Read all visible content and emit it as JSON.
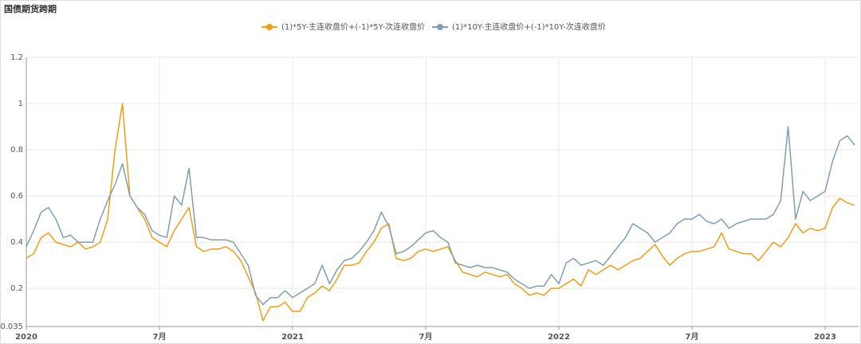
{
  "chart_data": {
    "type": "line",
    "title": "国债期货跨期",
    "categories": [
      "2020",
      null,
      null,
      null,
      null,
      null,
      null,
      null,
      null,
      null,
      null,
      null,
      null,
      null,
      null,
      null,
      null,
      null,
      "7月",
      null,
      null,
      null,
      null,
      null,
      null,
      null,
      null,
      null,
      null,
      null,
      null,
      null,
      null,
      null,
      null,
      null,
      "2021",
      null,
      null,
      null,
      null,
      null,
      null,
      null,
      null,
      null,
      null,
      null,
      null,
      null,
      null,
      null,
      null,
      null,
      "7月",
      null,
      null,
      null,
      null,
      null,
      null,
      null,
      null,
      null,
      null,
      null,
      null,
      null,
      null,
      null,
      null,
      null,
      "2022",
      null,
      null,
      null,
      null,
      null,
      null,
      null,
      null,
      null,
      null,
      null,
      null,
      null,
      null,
      null,
      null,
      null,
      "7月",
      null,
      null,
      null,
      null,
      null,
      null,
      null,
      null,
      null,
      null,
      null,
      null,
      null,
      null,
      null,
      null,
      null,
      "2023",
      null,
      null,
      null,
      null
    ],
    "series": [
      {
        "name": "(1)*5Y-主连收盘价+(-1)*5Y-次连收盘价",
        "color": "#f39c12",
        "values": [
          0.33,
          0.35,
          0.42,
          0.44,
          0.4,
          0.39,
          0.38,
          0.4,
          0.37,
          0.38,
          0.4,
          0.5,
          0.8,
          1.0,
          0.6,
          0.55,
          0.5,
          0.42,
          0.4,
          0.38,
          0.45,
          0.5,
          0.55,
          0.38,
          0.36,
          0.37,
          0.37,
          0.38,
          0.36,
          0.32,
          0.25,
          0.18,
          0.06,
          0.12,
          0.12,
          0.14,
          0.1,
          0.1,
          0.16,
          0.18,
          0.21,
          0.19,
          0.24,
          0.3,
          0.3,
          0.31,
          0.36,
          0.4,
          0.46,
          0.48,
          0.33,
          0.32,
          0.33,
          0.36,
          0.37,
          0.36,
          0.37,
          0.38,
          0.32,
          0.27,
          0.26,
          0.25,
          0.27,
          0.26,
          0.25,
          0.26,
          0.22,
          0.2,
          0.17,
          0.18,
          0.17,
          0.2,
          0.2,
          0.22,
          0.24,
          0.21,
          0.28,
          0.26,
          0.28,
          0.3,
          0.28,
          0.3,
          0.32,
          0.33,
          0.36,
          0.39,
          0.34,
          0.3,
          0.33,
          0.35,
          0.36,
          0.36,
          0.37,
          0.38,
          0.44,
          0.37,
          0.36,
          0.35,
          0.35,
          0.32,
          0.36,
          0.4,
          0.38,
          0.42,
          0.48,
          0.44,
          0.46,
          0.45,
          0.46,
          0.55,
          0.59,
          0.57,
          0.56
        ]
      },
      {
        "name": "(1)*10Y-主连收盘价+(-1)*10Y-次连收盘价",
        "color": "#7f9fb0",
        "values": [
          0.38,
          0.45,
          0.53,
          0.55,
          0.5,
          0.42,
          0.43,
          0.4,
          0.4,
          0.4,
          0.5,
          0.58,
          0.65,
          0.74,
          0.6,
          0.55,
          0.52,
          0.45,
          0.43,
          0.42,
          0.6,
          0.56,
          0.72,
          0.42,
          0.42,
          0.41,
          0.41,
          0.41,
          0.4,
          0.35,
          0.3,
          0.17,
          0.13,
          0.16,
          0.16,
          0.19,
          0.16,
          0.18,
          0.2,
          0.22,
          0.3,
          0.22,
          0.28,
          0.32,
          0.33,
          0.36,
          0.4,
          0.45,
          0.53,
          0.47,
          0.35,
          0.36,
          0.38,
          0.41,
          0.44,
          0.45,
          0.42,
          0.4,
          0.31,
          0.3,
          0.29,
          0.3,
          0.29,
          0.29,
          0.28,
          0.27,
          0.24,
          0.22,
          0.2,
          0.21,
          0.21,
          0.26,
          0.22,
          0.31,
          0.33,
          0.3,
          0.31,
          0.32,
          0.3,
          0.34,
          0.38,
          0.42,
          0.48,
          0.46,
          0.44,
          0.4,
          0.42,
          0.44,
          0.48,
          0.5,
          0.5,
          0.52,
          0.49,
          0.48,
          0.5,
          0.46,
          0.48,
          0.49,
          0.5,
          0.5,
          0.5,
          0.52,
          0.58,
          0.9,
          0.5,
          0.62,
          0.58,
          0.6,
          0.62,
          0.75,
          0.84,
          0.86,
          0.82
        ]
      }
    ],
    "ylim": [
      0.035,
      1.2
    ],
    "yticks": [
      0.035,
      0.2,
      0.4,
      0.6,
      0.8,
      1,
      1.2
    ],
    "grid": true
  }
}
